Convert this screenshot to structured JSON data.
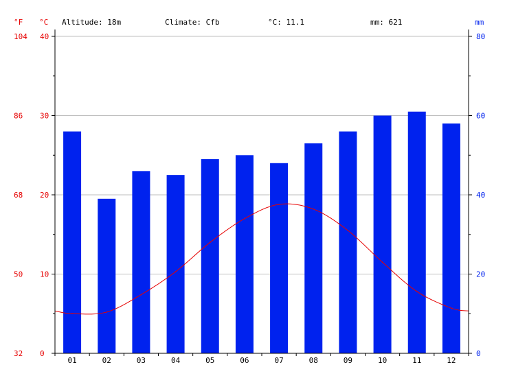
{
  "header": {
    "altitude": "Altitude: 18m",
    "climate": "Climate: Cfb",
    "temp_avg": "°C: 11.1",
    "precip_total": "mm: 621"
  },
  "units": {
    "fahrenheit": "°F",
    "celsius": "°C",
    "mm": "mm"
  },
  "colors": {
    "bars": "#0022ee",
    "temperature_line": "#e60000",
    "left_axis_text": "#e60000",
    "right_axis_text": "#0022ee",
    "grid": "#bdbdbd"
  },
  "chart_data": {
    "type": "bar",
    "categories": [
      "01",
      "02",
      "03",
      "04",
      "05",
      "06",
      "07",
      "08",
      "09",
      "10",
      "11",
      "12"
    ],
    "series": [
      {
        "type": "bar",
        "axis": "right",
        "values": [
          56,
          39,
          46,
          45,
          49,
          50,
          48,
          53,
          56,
          60,
          61,
          58
        ]
      },
      {
        "type": "line",
        "axis": "left",
        "values": [
          5.0,
          5.2,
          7.4,
          10.3,
          14.0,
          17.0,
          18.8,
          18.2,
          15.5,
          11.5,
          7.8,
          5.7
        ]
      }
    ],
    "y_left": {
      "celsius_ticks": [
        "0",
        "10",
        "20",
        "30",
        "40"
      ],
      "fahrenheit_ticks": [
        "32",
        "50",
        "68",
        "86",
        "104"
      ],
      "range": [
        0,
        40
      ]
    },
    "y_right": {
      "ticks": [
        "0",
        "20",
        "40",
        "60",
        "80"
      ],
      "range": [
        0,
        80
      ]
    },
    "grid": true
  }
}
